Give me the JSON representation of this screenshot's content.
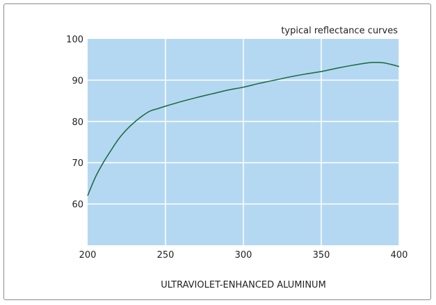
{
  "chart_data": {
    "type": "line",
    "title": "",
    "annotation": "typical reflectance curves",
    "xlabel": "ULTRAVIOLET-ENHANCED ALUMINUM",
    "ylabel": "",
    "xlim": [
      200,
      400
    ],
    "ylim": [
      50,
      100
    ],
    "xticks": [
      200,
      250,
      300,
      350,
      400
    ],
    "yticks": [
      60,
      70,
      80,
      90,
      100
    ],
    "grid": true,
    "series": [
      {
        "name": "",
        "color": "#1f6e45",
        "x": [
          200,
          205,
          210,
          215,
          220,
          225,
          230,
          235,
          240,
          245,
          250,
          260,
          270,
          280,
          290,
          300,
          310,
          320,
          330,
          340,
          350,
          360,
          370,
          380,
          385,
          390,
          395,
          400
        ],
        "y": [
          62,
          66.5,
          70,
          73,
          75.8,
          78,
          79.8,
          81.3,
          82.5,
          83.1,
          83.7,
          84.8,
          85.8,
          86.7,
          87.6,
          88.3,
          89.2,
          90.0,
          90.8,
          91.5,
          92.1,
          92.9,
          93.6,
          94.2,
          94.3,
          94.2,
          93.8,
          93.3
        ]
      }
    ]
  },
  "colors": {
    "plot_bg": "#b5d8f2",
    "grid": "#ffffff",
    "frame": "#8a8a8a"
  }
}
